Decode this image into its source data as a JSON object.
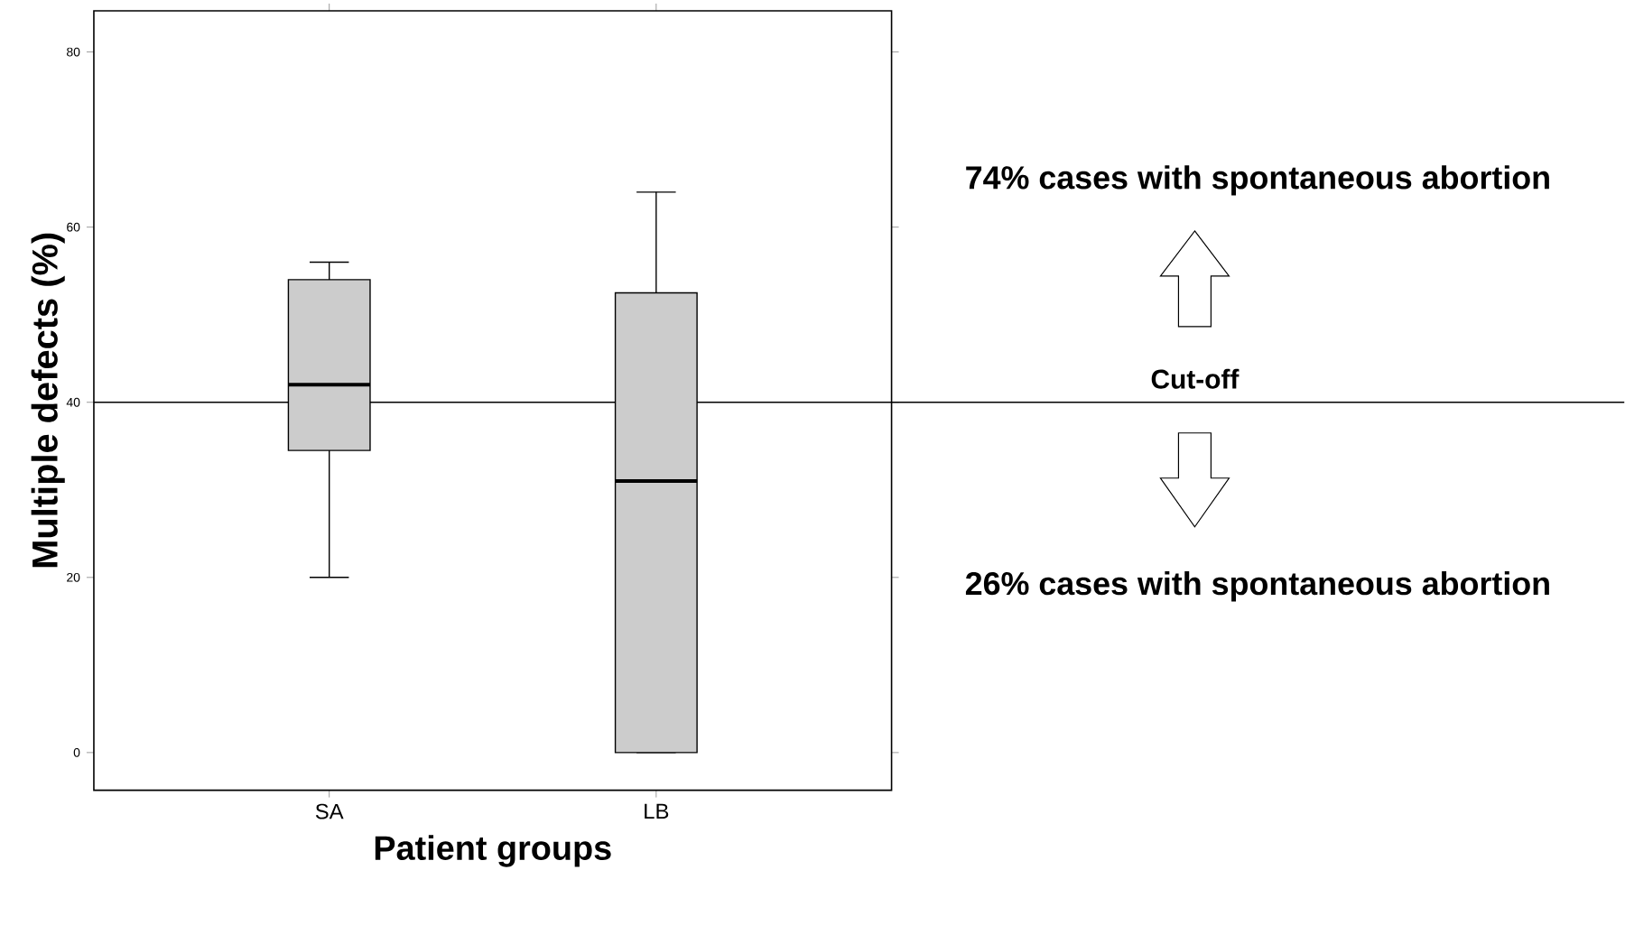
{
  "chart_data": {
    "type": "box",
    "categories": [
      "SA",
      "LB"
    ],
    "boxes": [
      {
        "low": 20,
        "q1": 34.5,
        "median": 42,
        "q3": 54,
        "high": 56
      },
      {
        "low": 0,
        "q1": 0,
        "median": 31,
        "q3": 52.5,
        "high": 64
      }
    ],
    "colors": [
      "#cccccc",
      "#cccccc"
    ],
    "xlabel": "Patient groups",
    "ylabel": "Multiple defects (%)",
    "ylim": [
      -4.3,
      84.7
    ],
    "yticks": [
      0,
      20,
      40,
      60,
      80
    ],
    "ref_lines": [
      {
        "axis": "y",
        "value": 40,
        "label": "Cut-off",
        "color": "#000000"
      }
    ],
    "annotations": [
      "74% cases with spontaneous abortion",
      "26% cases with spontaneous abortion"
    ]
  }
}
